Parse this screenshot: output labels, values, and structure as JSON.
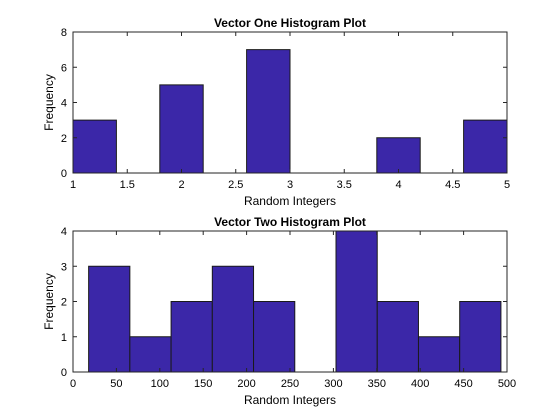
{
  "chart_data": [
    {
      "type": "bar",
      "title": "Vector One Histogram Plot",
      "xlabel": "Random Integers",
      "ylabel": "Frequency",
      "xlim": [
        1,
        5
      ],
      "ylim": [
        0,
        8
      ],
      "xticks": [
        "1",
        "1.5",
        "2",
        "2.5",
        "3",
        "3.5",
        "4",
        "4.5",
        "5"
      ],
      "yticks": [
        "0",
        "2",
        "4",
        "6",
        "8"
      ],
      "bin_edges": [
        1,
        1.4,
        1.8,
        2.2,
        2.6,
        3.0,
        3.4,
        3.8,
        4.2,
        4.6,
        5.0
      ],
      "values": [
        3,
        0,
        5,
        0,
        7,
        0,
        0,
        2,
        0,
        3
      ],
      "bar_color": "#3b27a8",
      "grid": false
    },
    {
      "type": "bar",
      "title": "Vector Two Histogram Plot",
      "xlabel": "Random Integers",
      "ylabel": "Frequency",
      "xlim": [
        0,
        500
      ],
      "ylim": [
        0,
        4
      ],
      "xticks": [
        "0",
        "50",
        "100",
        "150",
        "200",
        "250",
        "300",
        "350",
        "400",
        "450",
        "500"
      ],
      "yticks": [
        "0",
        "1",
        "2",
        "3",
        "4"
      ],
      "bin_edges": [
        18,
        65.5,
        113,
        160.5,
        208,
        255.5,
        303,
        350.5,
        398,
        445.5,
        493
      ],
      "values": [
        3,
        1,
        2,
        3,
        2,
        0,
        4,
        2,
        1,
        2
      ],
      "bar_color": "#3b27a8",
      "grid": false
    }
  ]
}
